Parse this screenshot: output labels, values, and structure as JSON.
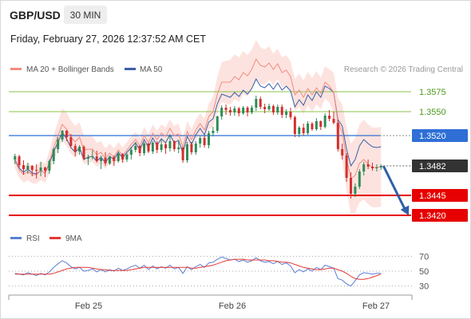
{
  "header": {
    "pair": "GBP/USD",
    "timeframe": "30 MIN",
    "datetime": "Friday, February 27, 2026 12:37:52 AM CET"
  },
  "legend": {
    "ma20_label": "MA 20 + Bollinger Bands",
    "ma50_label": "MA 50",
    "credit": "Research © 2026 Trading Central"
  },
  "rsi_legend": {
    "rsi_label": "RSI",
    "ma_label": "9MA"
  },
  "colors": {
    "ma20": "#f28b82",
    "ma50": "#3a5fa8",
    "bollinger_fill": "#fde3df",
    "candle_up": "#2e8b57",
    "candle_down": "#d32f2f",
    "resistance_line": "#8bc34a",
    "resistance_text": "#4c9a1a",
    "pivot": "#2f6fd6",
    "support": "#e60000",
    "current_price": "#333333",
    "arrow": "#2f5fa8",
    "rsi": "#5b7fd6",
    "rsi_ma": "#e53935"
  },
  "chart_data": [
    {
      "type": "candlestick",
      "ylim": [
        1.3405,
        1.3595
      ],
      "x_tick_labels": [
        "Feb 25",
        "Feb 26",
        "Feb 27"
      ],
      "levels": [
        {
          "value": 1.3575,
          "label": "1.3575",
          "kind": "resistance"
        },
        {
          "value": 1.355,
          "label": "1.3550",
          "kind": "resistance"
        },
        {
          "value": 1.352,
          "label": "1.3520",
          "kind": "pivot"
        },
        {
          "value": 1.3482,
          "label": "1.3482",
          "kind": "current"
        },
        {
          "value": 1.3445,
          "label": "1.3445",
          "kind": "support"
        },
        {
          "value": 1.342,
          "label": "1.3420",
          "kind": "support"
        }
      ],
      "forecast_arrow": {
        "from": 1.3482,
        "to": 1.342
      },
      "candles": [
        [
          1.349,
          1.3497,
          1.3484,
          1.3494
        ],
        [
          1.3494,
          1.3496,
          1.348,
          1.3483
        ],
        [
          1.3483,
          1.3489,
          1.3471,
          1.3478
        ],
        [
          1.3478,
          1.3486,
          1.3472,
          1.3482
        ],
        [
          1.3482,
          1.3483,
          1.3469,
          1.3477
        ],
        [
          1.3477,
          1.3484,
          1.3466,
          1.3476
        ],
        [
          1.3476,
          1.3487,
          1.3469,
          1.348
        ],
        [
          1.348,
          1.3481,
          1.3468,
          1.3476
        ],
        [
          1.3476,
          1.349,
          1.3472,
          1.3488
        ],
        [
          1.3488,
          1.3505,
          1.3484,
          1.3503
        ],
        [
          1.3503,
          1.3518,
          1.3498,
          1.3515
        ],
        [
          1.3515,
          1.3527,
          1.3512,
          1.3526
        ],
        [
          1.3526,
          1.3527,
          1.3513,
          1.3518
        ],
        [
          1.3518,
          1.3522,
          1.3505,
          1.3507
        ],
        [
          1.3507,
          1.351,
          1.3494,
          1.35
        ],
        [
          1.35,
          1.3508,
          1.3496,
          1.3506
        ],
        [
          1.3506,
          1.3508,
          1.3489,
          1.3491
        ],
        [
          1.3491,
          1.3496,
          1.3483,
          1.3493
        ],
        [
          1.3493,
          1.3502,
          1.349,
          1.3494
        ],
        [
          1.3494,
          1.3501,
          1.3486,
          1.3488
        ],
        [
          1.3488,
          1.3495,
          1.3478,
          1.3492
        ],
        [
          1.3492,
          1.3499,
          1.3482,
          1.3485
        ],
        [
          1.3485,
          1.3495,
          1.3483,
          1.3493
        ],
        [
          1.3493,
          1.3495,
          1.3482,
          1.3488
        ],
        [
          1.3488,
          1.35,
          1.3486,
          1.3497
        ],
        [
          1.3497,
          1.3498,
          1.3486,
          1.349
        ],
        [
          1.349,
          1.3498,
          1.3487,
          1.3496
        ],
        [
          1.3496,
          1.3506,
          1.349,
          1.3502
        ],
        [
          1.3502,
          1.3512,
          1.3499,
          1.3507
        ],
        [
          1.3507,
          1.3508,
          1.3494,
          1.3498
        ],
        [
          1.3498,
          1.3512,
          1.3495,
          1.351
        ],
        [
          1.351,
          1.3511,
          1.3498,
          1.35
        ],
        [
          1.35,
          1.3513,
          1.3497,
          1.3511
        ],
        [
          1.3511,
          1.3513,
          1.3498,
          1.3502
        ],
        [
          1.3502,
          1.3515,
          1.3499,
          1.3509
        ],
        [
          1.3509,
          1.3512,
          1.3497,
          1.3504
        ],
        [
          1.3504,
          1.352,
          1.35,
          1.3513
        ],
        [
          1.3513,
          1.3514,
          1.35,
          1.3503
        ],
        [
          1.3503,
          1.3514,
          1.3498,
          1.3505
        ],
        [
          1.3505,
          1.3506,
          1.3486,
          1.3489
        ],
        [
          1.3489,
          1.3512,
          1.3486,
          1.3509
        ],
        [
          1.3509,
          1.3512,
          1.3496,
          1.3499
        ],
        [
          1.3499,
          1.3513,
          1.3496,
          1.351
        ],
        [
          1.351,
          1.352,
          1.3505,
          1.3517
        ],
        [
          1.3517,
          1.352,
          1.3505,
          1.3508
        ],
        [
          1.3508,
          1.3526,
          1.3504,
          1.3523
        ],
        [
          1.3523,
          1.3531,
          1.3519,
          1.3526
        ],
        [
          1.3526,
          1.3545,
          1.3523,
          1.3544
        ],
        [
          1.3544,
          1.3558,
          1.354,
          1.3555
        ],
        [
          1.3555,
          1.3559,
          1.3546,
          1.3552
        ],
        [
          1.3552,
          1.3556,
          1.3545,
          1.3549
        ],
        [
          1.3549,
          1.3557,
          1.3545,
          1.3554
        ],
        [
          1.3554,
          1.3556,
          1.3544,
          1.3548
        ],
        [
          1.3548,
          1.3557,
          1.3546,
          1.3555
        ],
        [
          1.3555,
          1.3557,
          1.3544,
          1.3549
        ],
        [
          1.3549,
          1.3558,
          1.3547,
          1.3555
        ],
        [
          1.3555,
          1.357,
          1.3551,
          1.3566
        ],
        [
          1.3566,
          1.3569,
          1.3553,
          1.3556
        ],
        [
          1.3556,
          1.356,
          1.3548,
          1.3553
        ],
        [
          1.3553,
          1.356,
          1.3551,
          1.3557
        ],
        [
          1.3557,
          1.3559,
          1.3546,
          1.3549
        ],
        [
          1.3549,
          1.3559,
          1.3546,
          1.3556
        ],
        [
          1.3556,
          1.3559,
          1.3542,
          1.3546
        ],
        [
          1.3546,
          1.3553,
          1.3542,
          1.355
        ],
        [
          1.355,
          1.3555,
          1.354,
          1.3543
        ],
        [
          1.3543,
          1.3545,
          1.3518,
          1.3522
        ],
        [
          1.3522,
          1.3532,
          1.3518,
          1.353
        ],
        [
          1.353,
          1.3535,
          1.352,
          1.3523
        ],
        [
          1.3523,
          1.3538,
          1.3521,
          1.3535
        ],
        [
          1.3535,
          1.3537,
          1.3526,
          1.3528
        ],
        [
          1.3528,
          1.3542,
          1.3526,
          1.3538
        ],
        [
          1.3538,
          1.3539,
          1.3527,
          1.3531
        ],
        [
          1.3531,
          1.3548,
          1.3529,
          1.3545
        ],
        [
          1.3545,
          1.3552,
          1.3538,
          1.3541
        ],
        [
          1.3541,
          1.355,
          1.3534,
          1.3536
        ],
        [
          1.3536,
          1.354,
          1.35,
          1.3503
        ],
        [
          1.3503,
          1.351,
          1.349,
          1.3495
        ],
        [
          1.3495,
          1.3498,
          1.3462,
          1.3467
        ],
        [
          1.3467,
          1.3474,
          1.3441,
          1.3447
        ],
        [
          1.3447,
          1.346,
          1.3443,
          1.3456
        ],
        [
          1.3456,
          1.3478,
          1.3453,
          1.3475
        ],
        [
          1.3475,
          1.3487,
          1.347,
          1.3484
        ],
        [
          1.3484,
          1.349,
          1.3478,
          1.3481
        ],
        [
          1.3481,
          1.3486,
          1.3476,
          1.3479
        ],
        [
          1.3479,
          1.3484,
          1.3475,
          1.348
        ],
        [
          1.348,
          1.3484,
          1.3477,
          1.3482
        ]
      ],
      "ma20_rel": [
        -0.0005,
        -0.0006,
        -0.0007,
        -0.0007,
        -0.0006,
        -0.0005,
        -0.0004,
        -0.0003,
        -0.0001,
        0.0002,
        0.0005,
        0.0008,
        0.001,
        0.0011,
        0.0012,
        0.0012,
        0.0011,
        0.001,
        0.0009,
        0.0008,
        0.0007,
        0.0006,
        0.0005,
        0.0005,
        0.0005,
        0.0005,
        0.0006,
        0.0007,
        0.0008,
        0.0009,
        0.001,
        0.0011,
        0.0012,
        0.0013,
        0.0014,
        0.0015,
        0.0016,
        0.0017,
        0.0017,
        0.0016,
        0.0016,
        0.0016,
        0.0017,
        0.0018,
        0.0019,
        0.0021,
        0.0024,
        0.0028,
        0.0032,
        0.0035,
        0.0038,
        0.004,
        0.0042,
        0.0044,
        0.0046,
        0.0048,
        0.005,
        0.0052,
        0.0053,
        0.0054,
        0.0054,
        0.0054,
        0.0053,
        0.0052,
        0.0051,
        0.0049,
        0.0047,
        0.0045,
        0.0044,
        0.0043,
        0.0042,
        0.0042,
        0.0042,
        0.0041,
        0.0038,
        0.0034,
        0.0029,
        0.0024,
        0.0019,
        0.0014,
        0.001,
        0.0006,
        0.0003,
        0.0001,
        0.0,
        -0.0001
      ],
      "ma50_rel": [
        -0.0004,
        -0.0004,
        -0.0004,
        -0.0004,
        -0.0004,
        -0.0004,
        -0.0004,
        -0.0003,
        -0.0003,
        -0.0003,
        -0.0003,
        -0.0002,
        -0.0002,
        -0.0002,
        -0.0001,
        -0.0001,
        -0.0001,
        0.0,
        0.0,
        0.0,
        0.0001,
        0.0001,
        0.0001,
        0.0002,
        0.0002,
        0.0002,
        0.0003,
        0.0003,
        0.0004,
        0.0004,
        0.0005,
        0.0005,
        0.0006,
        0.0006,
        0.0007,
        0.0007,
        0.0008,
        0.0008,
        0.0009,
        0.0009,
        0.001,
        0.001,
        0.0011,
        0.0012,
        0.0013,
        0.0014,
        0.0015,
        0.0016,
        0.0017,
        0.0018,
        0.0019,
        0.002,
        0.0021,
        0.0022,
        0.0023,
        0.0024,
        0.0025,
        0.0026,
        0.0027,
        0.0028,
        0.0029,
        0.003,
        0.0031,
        0.0032,
        0.0033,
        0.0034,
        0.0035,
        0.0035,
        0.0036,
        0.0036,
        0.0037,
        0.0037,
        0.0037,
        0.0038,
        0.0038,
        0.0037,
        0.0037,
        0.0036,
        0.0035,
        0.0034,
        0.0032,
        0.0031,
        0.0029,
        0.0027,
        0.0025,
        0.0024
      ],
      "bollinger_halfwidth": [
        0.001,
        0.001,
        0.001,
        0.0011,
        0.0011,
        0.0011,
        0.0012,
        0.0012,
        0.0014,
        0.0016,
        0.0018,
        0.002,
        0.0021,
        0.0021,
        0.002,
        0.0019,
        0.0018,
        0.0017,
        0.0016,
        0.0015,
        0.0014,
        0.0013,
        0.0012,
        0.0011,
        0.001,
        0.001,
        0.001,
        0.001,
        0.001,
        0.001,
        0.0011,
        0.0011,
        0.0011,
        0.0011,
        0.0011,
        0.0011,
        0.0011,
        0.0012,
        0.0013,
        0.0013,
        0.0013,
        0.0013,
        0.0013,
        0.0013,
        0.0014,
        0.0016,
        0.0019,
        0.0022,
        0.0025,
        0.0027,
        0.0028,
        0.0028,
        0.0028,
        0.0027,
        0.0026,
        0.0025,
        0.0024,
        0.0023,
        0.0022,
        0.0021,
        0.002,
        0.0019,
        0.0019,
        0.0019,
        0.0019,
        0.002,
        0.0021,
        0.0021,
        0.0021,
        0.0021,
        0.0021,
        0.002,
        0.002,
        0.0021,
        0.0025,
        0.003,
        0.0035,
        0.004,
        0.0044,
        0.0047,
        0.0049,
        0.005,
        0.005,
        0.005,
        0.005,
        0.005
      ]
    },
    {
      "type": "line",
      "ylim": [
        20,
        80
      ],
      "ytick_labels": [
        "70",
        "50",
        "30"
      ],
      "yticks": [
        70,
        50,
        30
      ],
      "series": [
        {
          "name": "RSI",
          "values": [
            47,
            46,
            45,
            48,
            46,
            44,
            47,
            45,
            49,
            55,
            60,
            64,
            61,
            56,
            53,
            55,
            50,
            51,
            53,
            49,
            52,
            49,
            52,
            50,
            54,
            51,
            53,
            56,
            58,
            54,
            58,
            52,
            57,
            53,
            56,
            54,
            58,
            53,
            55,
            47,
            56,
            52,
            56,
            59,
            55,
            61,
            62,
            66,
            69,
            67,
            65,
            66,
            63,
            65,
            62,
            64,
            68,
            64,
            62,
            63,
            60,
            63,
            59,
            61,
            57,
            48,
            52,
            49,
            53,
            50,
            55,
            52,
            58,
            56,
            54,
            40,
            38,
            33,
            30,
            37,
            45,
            48,
            47,
            46,
            47,
            47
          ]
        },
        {
          "name": "9MA",
          "values": [
            46,
            46,
            46,
            46,
            46,
            46,
            46,
            46,
            46,
            47,
            49,
            51,
            53,
            54,
            55,
            55,
            55,
            55,
            54,
            53,
            52,
            52,
            51,
            51,
            51,
            51,
            51,
            52,
            53,
            54,
            55,
            55,
            55,
            55,
            55,
            55,
            55,
            55,
            55,
            55,
            55,
            54,
            54,
            55,
            56,
            57,
            58,
            60,
            62,
            64,
            65,
            66,
            66,
            66,
            65,
            65,
            65,
            65,
            65,
            64,
            64,
            63,
            62,
            62,
            61,
            59,
            57,
            55,
            54,
            53,
            52,
            52,
            53,
            54,
            54,
            52,
            50,
            47,
            43,
            40,
            39,
            39,
            40,
            42,
            44,
            46
          ]
        }
      ]
    }
  ]
}
